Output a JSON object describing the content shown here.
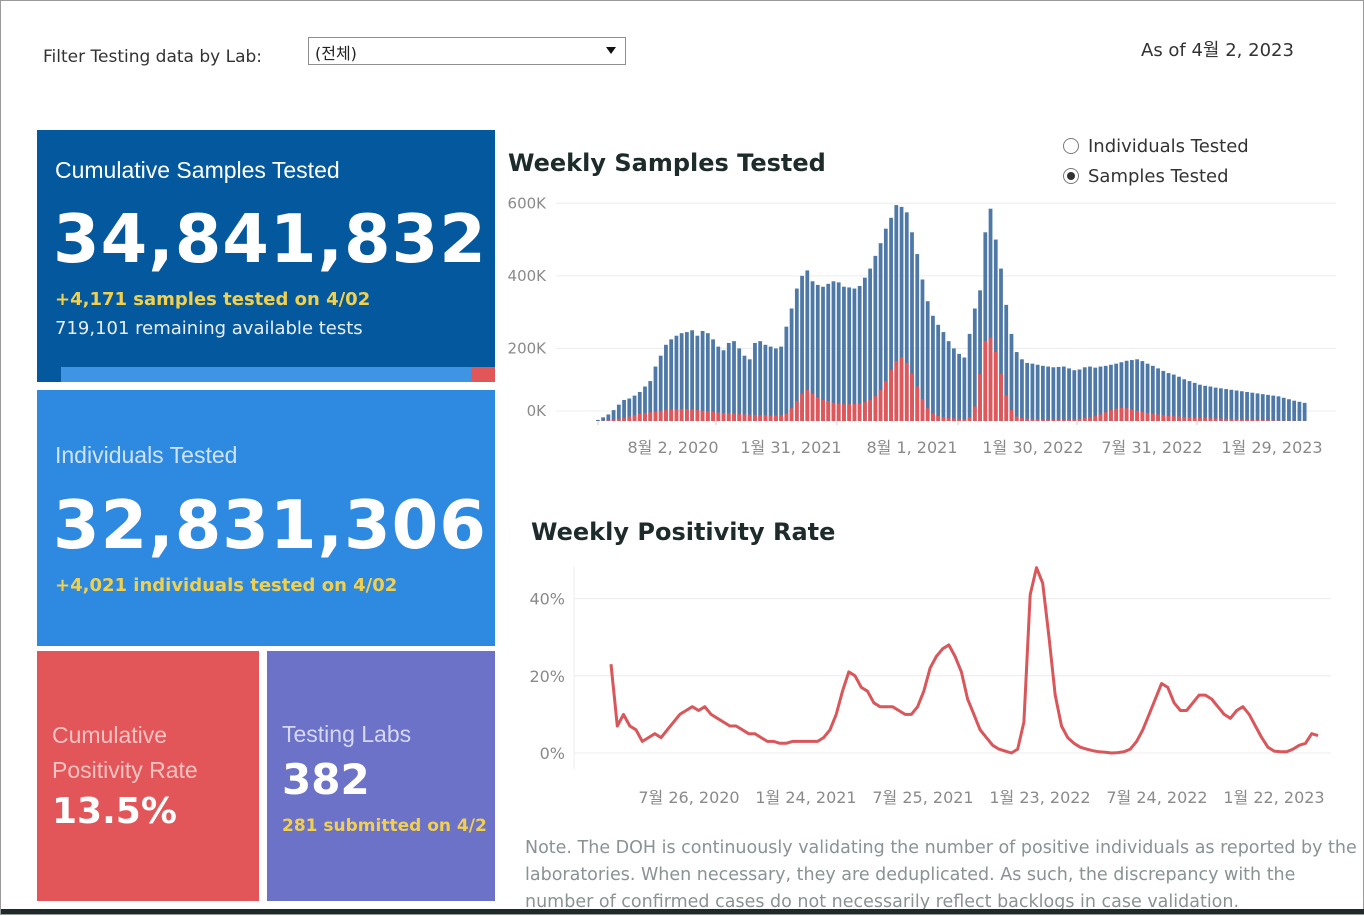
{
  "filter": {
    "label": "Filter Testing data by Lab:",
    "selected": "(전체)"
  },
  "as_of": "As of 4월 2, 2023",
  "cards": {
    "samples": {
      "title": "Cumulative Samples Tested",
      "value": "34,841,832",
      "delta": "+4,171 samples tested on 4/02",
      "remaining": "719,101 remaining available tests",
      "used_fraction": 0.945
    },
    "individuals": {
      "title": "Individuals Tested",
      "value": "32,831,306",
      "delta": "+4,021  individuals  tested on 4/02"
    },
    "positivity": {
      "title_line1": "Cumulative",
      "title_line2": "Positivity Rate",
      "value": "13.5%"
    },
    "labs": {
      "title": "Testing Labs",
      "value": "382",
      "submitted": "281 submitted on 4/2"
    }
  },
  "toggle": {
    "options": [
      "Individuals Tested",
      "Samples Tested"
    ],
    "selected": "Samples Tested"
  },
  "colors": {
    "samples_bar": "#4e79a7",
    "positive_bar": "#e15759",
    "line": "#d9565a"
  },
  "note": "Note. The DOH is continuously validating the number of positive individuals as reported by the laboratories. When necessary, they are deduplicated. As such, the discrepancy with the number of confirmed cases do not necessarily reflect backlogs in case validation.",
  "chart_data": [
    {
      "type": "bar",
      "title": "Weekly Samples Tested",
      "x_tick_labels": [
        "8월 2, 2020",
        "1월 31, 2021",
        "8월 1, 2021",
        "1월 30, 2022",
        "7월 31, 2022",
        "1월 29, 2023"
      ],
      "y_tick_labels": [
        "0K",
        "200K",
        "400K",
        "600K"
      ],
      "ylim": [
        0,
        620000
      ],
      "grid": true,
      "series": [
        {
          "values": [
            3000,
            10000,
            18000,
            30000,
            45000,
            58000,
            62000,
            70000,
            80000,
            95000,
            110000,
            150000,
            180000,
            210000,
            225000,
            235000,
            242000,
            245000,
            250000,
            235000,
            248000,
            242000,
            225000,
            205000,
            195000,
            215000,
            220000,
            200000,
            180000,
            170000,
            215000,
            220000,
            210000,
            205000,
            200000,
            205000,
            260000,
            310000,
            365000,
            400000,
            415000,
            385000,
            375000,
            370000,
            378000,
            385000,
            382000,
            370000,
            368000,
            365000,
            372000,
            395000,
            420000,
            455000,
            490000,
            530000,
            560000,
            595000,
            590000,
            575000,
            520000,
            460000,
            390000,
            330000,
            290000,
            265000,
            245000,
            220000,
            200000,
            185000,
            175000,
            240000,
            310000,
            360000,
            520000,
            585000,
            500000,
            420000,
            320000,
            240000,
            190000,
            170000,
            160000,
            158000,
            155000,
            152000,
            150000,
            148000,
            149000,
            150000,
            145000,
            140000,
            142000,
            148000,
            150000,
            147000,
            150000,
            152000,
            155000,
            158000,
            162000,
            166000,
            168000,
            170000,
            165000,
            158000,
            152000,
            145000,
            138000,
            132000,
            128000,
            122000,
            115000,
            110000,
            105000,
            100000,
            97000,
            95000,
            92000,
            90000,
            88000,
            86000,
            84000,
            82000,
            80000,
            78000,
            76000,
            74000,
            72000,
            70000,
            68000,
            64000,
            60000,
            56000,
            53000,
            50000
          ]
        },
        {
          "values": [
            200,
            800,
            1800,
            3500,
            6000,
            8000,
            12000,
            16000,
            20000,
            22000,
            24000,
            26000,
            28000,
            30000,
            31000,
            32000,
            33000,
            33000,
            32000,
            30000,
            28000,
            27000,
            25000,
            23000,
            22000,
            21000,
            20000,
            19000,
            18000,
            17000,
            17000,
            16000,
            16000,
            15000,
            15000,
            16000,
            20000,
            35000,
            55000,
            75000,
            85000,
            75000,
            65000,
            58000,
            55000,
            50000,
            48000,
            46000,
            46000,
            47000,
            48000,
            52000,
            58000,
            68000,
            85000,
            110000,
            140000,
            165000,
            175000,
            160000,
            130000,
            95000,
            60000,
            35000,
            20000,
            14000,
            10000,
            8000,
            7000,
            6000,
            5000,
            10000,
            40000,
            130000,
            220000,
            230000,
            190000,
            130000,
            70000,
            30000,
            12000,
            8000,
            6000,
            5000,
            4500,
            4000,
            4000,
            3800,
            3800,
            4000,
            4500,
            5000,
            6000,
            8000,
            10000,
            13000,
            18000,
            24000,
            30000,
            34000,
            36000,
            35000,
            32000,
            28000,
            25000,
            22000,
            20000,
            18000,
            16000,
            14000,
            13000,
            12000,
            11000,
            10000,
            9000,
            8500,
            8000,
            7500,
            7000,
            6500,
            6000,
            5500,
            5000,
            4500,
            4000,
            3500,
            3000,
            2500,
            2000,
            1500,
            1000,
            800,
            600,
            500,
            400,
            300
          ]
        }
      ]
    },
    {
      "type": "line",
      "title": "Weekly Positivity Rate",
      "x_tick_labels": [
        "7월 26, 2020",
        "1월 24, 2021",
        "7월 25, 2021",
        "1월 23, 2022",
        "7월 24, 2022",
        "1월 22, 2023"
      ],
      "y_tick_labels": [
        "0%",
        "20%",
        "40%"
      ],
      "ylim": [
        0,
        50
      ],
      "grid": true,
      "series": [
        {
          "values": [
            23,
            7,
            10,
            7,
            6,
            3,
            4,
            5,
            4,
            6,
            8,
            10,
            11,
            12,
            11,
            12,
            10,
            9,
            8,
            7,
            7,
            6,
            5,
            5,
            4,
            3,
            3,
            2.5,
            2.5,
            3,
            3,
            3,
            3,
            3,
            4,
            6,
            10,
            16,
            21,
            20,
            17,
            16,
            13,
            12,
            12,
            12,
            11,
            10,
            10,
            12,
            16,
            22,
            25,
            27,
            28,
            25,
            21,
            14,
            10,
            6,
            4,
            2,
            1,
            0.5,
            0,
            1,
            8,
            41,
            48,
            44,
            30,
            15,
            7,
            4,
            2.5,
            1.5,
            1,
            0.6,
            0.3,
            0.2,
            0,
            0.1,
            0.3,
            1,
            3,
            6,
            10,
            14,
            18,
            17,
            13,
            11,
            11,
            13,
            15,
            15,
            14,
            12,
            10,
            9,
            11,
            12,
            10,
            7,
            4,
            1.5,
            0.5,
            0.3,
            0.3,
            1,
            2,
            2.5,
            5,
            4.5
          ]
        }
      ]
    }
  ]
}
